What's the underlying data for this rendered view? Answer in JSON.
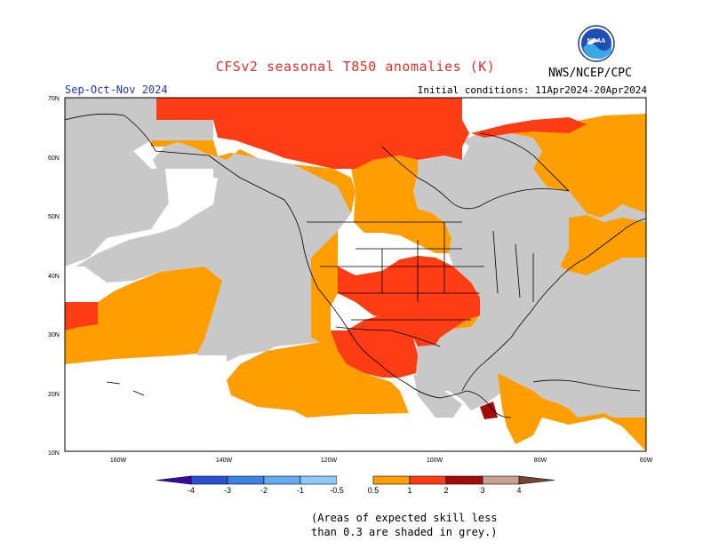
{
  "header": {
    "title": "CFSv2 seasonal T850 anomalies (K)",
    "season": "Sep-Oct-Nov 2024",
    "initial_conditions": "Initial conditions: 11Apr2024-20Apr2024",
    "organization": "NWS/NCEP/CPC",
    "logo": "NOAA"
  },
  "map": {
    "lat_labels": [
      "70N",
      "60N",
      "50N",
      "40N",
      "30N",
      "20N",
      "10N"
    ],
    "lon_labels": [
      "160W",
      "140W",
      "120W",
      "100W",
      "80W",
      "60W"
    ],
    "colors": {
      "anom_05_1": "#ff9e00",
      "anom_1_2": "#ff3c14",
      "anom_2_3": "#a40a0a",
      "low_skill": "#c8c8c8",
      "land_line": "#000000"
    }
  },
  "colorbar": {
    "tick_labels": [
      "-4",
      "-3",
      "-2",
      "-1",
      "-0.5",
      "0.5",
      "1",
      "2",
      "3",
      "4"
    ],
    "colors": [
      "#3c0aa0",
      "#2850d2",
      "#3c82e6",
      "#64aaf0",
      "#8cc8f8",
      "#ffffff",
      "#ff9e00",
      "#ff3c14",
      "#a40a0a",
      "#c8a096",
      "#7a4432"
    ]
  },
  "footnote": {
    "line1": "(Areas of expected skill less",
    "line2": "than 0.3 are shaded in grey.)"
  }
}
